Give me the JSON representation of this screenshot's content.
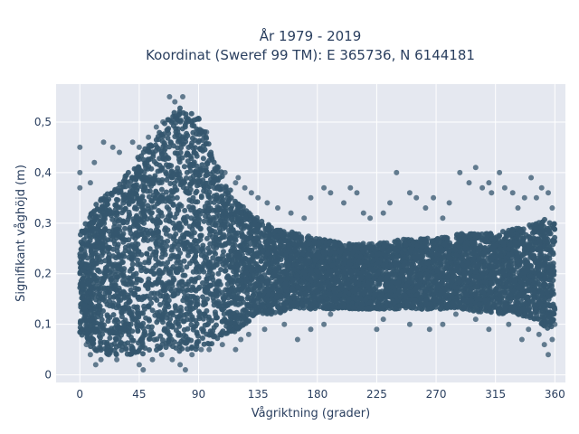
{
  "chart_data": {
    "type": "scatter",
    "title": "År 1979 - 2019",
    "subtitle": "Koordinat (Sweref 99 TM): E 365736, N 6144181",
    "xlabel": "Vågriktning (grader)",
    "ylabel": "Signifikant våghöjd (m)",
    "xlim": [
      -18,
      368
    ],
    "ylim": [
      -0.015,
      0.575
    ],
    "x_ticks": [
      0,
      45,
      90,
      135,
      180,
      225,
      270,
      315,
      360
    ],
    "y_ticks": [
      0,
      0.1,
      0.2,
      0.3,
      0.4,
      0.5
    ],
    "y_tick_labels": [
      "0",
      "0,1",
      "0,2",
      "0,3",
      "0,4",
      "0,5"
    ],
    "grid": true,
    "legend": "none",
    "marker_color": "#34566e",
    "plot_background": "#e5e8f0",
    "series": [
      {
        "envelope_x": [
          0,
          10,
          20,
          30,
          40,
          50,
          60,
          70,
          75,
          80,
          85,
          90,
          95,
          100,
          105,
          110,
          115,
          120,
          125,
          130,
          140,
          150,
          165,
          180,
          200,
          225,
          250,
          270,
          290,
          315,
          330,
          345,
          355,
          360
        ],
        "envelope_upper": [
          0.28,
          0.33,
          0.36,
          0.38,
          0.42,
          0.45,
          0.48,
          0.52,
          0.53,
          0.52,
          0.52,
          0.51,
          0.48,
          0.44,
          0.41,
          0.39,
          0.36,
          0.34,
          0.33,
          0.32,
          0.3,
          0.29,
          0.28,
          0.27,
          0.26,
          0.26,
          0.27,
          0.27,
          0.28,
          0.28,
          0.29,
          0.3,
          0.31,
          0.3
        ],
        "envelope_lower": [
          0.08,
          0.05,
          0.04,
          0.04,
          0.04,
          0.04,
          0.05,
          0.05,
          0.04,
          0.05,
          0.05,
          0.05,
          0.06,
          0.06,
          0.07,
          0.08,
          0.08,
          0.09,
          0.1,
          0.11,
          0.12,
          0.12,
          0.13,
          0.13,
          0.13,
          0.13,
          0.13,
          0.13,
          0.13,
          0.12,
          0.12,
          0.11,
          0.09,
          0.1
        ],
        "points": [
          [
            68,
            0.55
          ],
          [
            72,
            0.54
          ],
          [
            78,
            0.55
          ],
          [
            0,
            0.45
          ],
          [
            0,
            0.4
          ],
          [
            0,
            0.37
          ],
          [
            8,
            0.38
          ],
          [
            11,
            0.42
          ],
          [
            18,
            0.46
          ],
          [
            25,
            0.45
          ],
          [
            30,
            0.44
          ],
          [
            40,
            0.46
          ],
          [
            45,
            0.45
          ],
          [
            52,
            0.47
          ],
          [
            58,
            0.49
          ],
          [
            63,
            0.5
          ],
          [
            96,
            0.48
          ],
          [
            100,
            0.43
          ],
          [
            105,
            0.41
          ],
          [
            110,
            0.4
          ],
          [
            118,
            0.38
          ],
          [
            120,
            0.39
          ],
          [
            125,
            0.37
          ],
          [
            130,
            0.36
          ],
          [
            135,
            0.35
          ],
          [
            142,
            0.34
          ],
          [
            150,
            0.33
          ],
          [
            160,
            0.32
          ],
          [
            170,
            0.31
          ],
          [
            175,
            0.35
          ],
          [
            185,
            0.37
          ],
          [
            190,
            0.36
          ],
          [
            200,
            0.34
          ],
          [
            205,
            0.37
          ],
          [
            210,
            0.36
          ],
          [
            215,
            0.32
          ],
          [
            220,
            0.31
          ],
          [
            230,
            0.32
          ],
          [
            235,
            0.34
          ],
          [
            240,
            0.4
          ],
          [
            250,
            0.36
          ],
          [
            255,
            0.35
          ],
          [
            262,
            0.33
          ],
          [
            268,
            0.35
          ],
          [
            275,
            0.31
          ],
          [
            280,
            0.34
          ],
          [
            288,
            0.4
          ],
          [
            295,
            0.38
          ],
          [
            300,
            0.41
          ],
          [
            305,
            0.37
          ],
          [
            310,
            0.38
          ],
          [
            312,
            0.36
          ],
          [
            318,
            0.4
          ],
          [
            322,
            0.37
          ],
          [
            328,
            0.36
          ],
          [
            332,
            0.33
          ],
          [
            337,
            0.35
          ],
          [
            342,
            0.39
          ],
          [
            346,
            0.35
          ],
          [
            350,
            0.37
          ],
          [
            355,
            0.36
          ],
          [
            358,
            0.33
          ],
          [
            2,
            0.09
          ],
          [
            5,
            0.06
          ],
          [
            8,
            0.04
          ],
          [
            12,
            0.02
          ],
          [
            16,
            0.03
          ],
          [
            22,
            0.04
          ],
          [
            28,
            0.03
          ],
          [
            35,
            0.05
          ],
          [
            45,
            0.02
          ],
          [
            48,
            0.01
          ],
          [
            55,
            0.03
          ],
          [
            62,
            0.04
          ],
          [
            70,
            0.03
          ],
          [
            76,
            0.02
          ],
          [
            80,
            0.01
          ],
          [
            85,
            0.04
          ],
          [
            92,
            0.05
          ],
          [
            98,
            0.05
          ],
          [
            108,
            0.06
          ],
          [
            118,
            0.05
          ],
          [
            122,
            0.07
          ],
          [
            128,
            0.08
          ],
          [
            140,
            0.09
          ],
          [
            155,
            0.1
          ],
          [
            165,
            0.07
          ],
          [
            175,
            0.09
          ],
          [
            185,
            0.1
          ],
          [
            190,
            0.12
          ],
          [
            225,
            0.09
          ],
          [
            230,
            0.11
          ],
          [
            250,
            0.1
          ],
          [
            265,
            0.09
          ],
          [
            275,
            0.1
          ],
          [
            285,
            0.12
          ],
          [
            300,
            0.11
          ],
          [
            310,
            0.09
          ],
          [
            325,
            0.1
          ],
          [
            335,
            0.07
          ],
          [
            340,
            0.09
          ],
          [
            348,
            0.08
          ],
          [
            352,
            0.06
          ],
          [
            355,
            0.04
          ],
          [
            358,
            0.07
          ],
          [
            360,
            0.1
          ]
        ]
      }
    ]
  }
}
